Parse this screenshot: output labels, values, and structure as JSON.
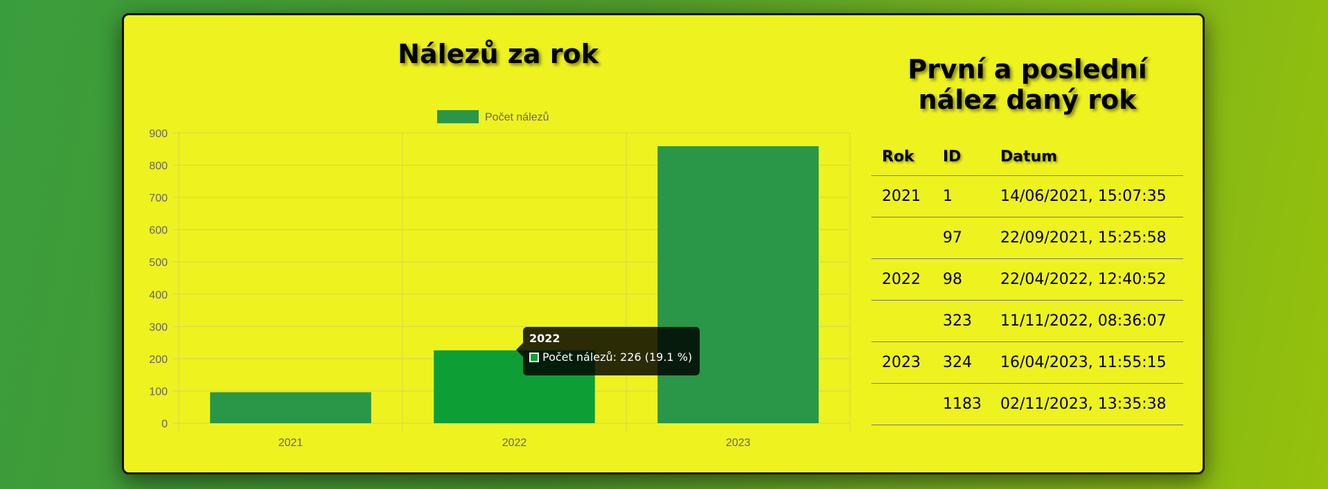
{
  "chart_data": {
    "type": "bar",
    "title": "Nálezů za rok",
    "categories": [
      "2021",
      "2022",
      "2023"
    ],
    "series": [
      {
        "name": "Počet nálezů",
        "values": [
          96,
          226,
          859
        ],
        "color": "#2a9648",
        "hover_color": "#0d9f36"
      }
    ],
    "ylim": [
      0,
      900
    ],
    "yticks": [
      0,
      100,
      200,
      300,
      400,
      500,
      600,
      700,
      800,
      900
    ],
    "grid": true,
    "legend": "top",
    "tooltip": {
      "title": "2022",
      "label": "Počet nálezů: 226 (19.1 %)"
    }
  },
  "table": {
    "title": "První a poslední nález daný rok",
    "headers": [
      "Rok",
      "ID",
      "Datum"
    ],
    "rows": [
      {
        "year": "2021",
        "id": "1",
        "date": "14/06/2021, 15:07:35"
      },
      {
        "year": "",
        "id": "97",
        "date": "22/09/2021, 15:25:58"
      },
      {
        "year": "2022",
        "id": "98",
        "date": "22/04/2022, 12:40:52"
      },
      {
        "year": "",
        "id": "323",
        "date": "11/11/2022, 08:36:07"
      },
      {
        "year": "2023",
        "id": "324",
        "date": "16/04/2023, 11:55:15"
      },
      {
        "year": "",
        "id": "1183",
        "date": "02/11/2023, 13:35:38"
      }
    ]
  },
  "colors": {
    "card": "#eef21f",
    "grid": "#d2d84a",
    "tick": "#666666"
  }
}
